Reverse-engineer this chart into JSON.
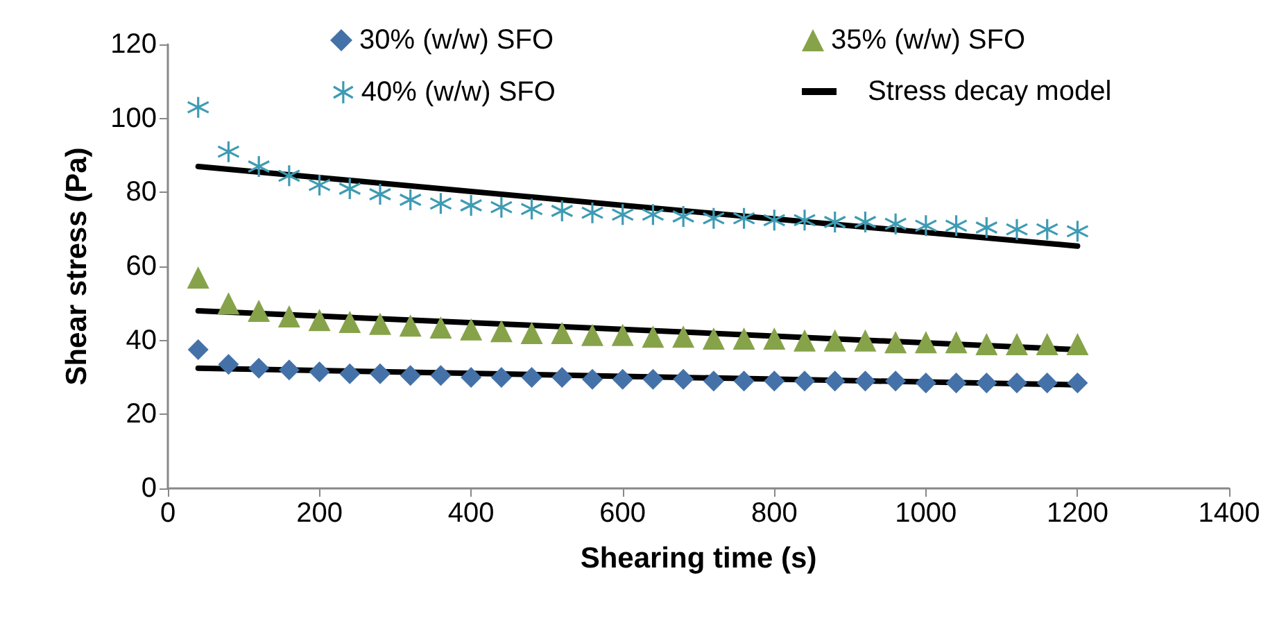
{
  "chart_data": {
    "type": "scatter",
    "xlabel": "Shearing time (s)",
    "ylabel": "Shear stress (Pa)",
    "x": [
      40,
      80,
      120,
      160,
      200,
      240,
      280,
      320,
      360,
      400,
      440,
      480,
      520,
      560,
      600,
      640,
      680,
      720,
      760,
      800,
      840,
      880,
      920,
      960,
      1000,
      1040,
      1080,
      1120,
      1160,
      1200
    ],
    "series": [
      {
        "name": "30% (w/w) SFO",
        "color": "#4472a8",
        "marker": "diamond",
        "values": [
          37.5,
          33.5,
          32.5,
          32,
          31.5,
          31,
          31,
          30.5,
          30.5,
          30,
          30,
          30,
          30,
          29.5,
          29.5,
          29.5,
          29.5,
          29,
          29,
          29,
          29,
          29,
          29,
          29,
          28.5,
          28.5,
          28.5,
          28.5,
          28.5,
          28.5
        ]
      },
      {
        "name": "35% (w/w) SFO",
        "color": "#86a34a",
        "marker": "triangle",
        "values": [
          57,
          50,
          48,
          46.5,
          45.5,
          45,
          44.5,
          44,
          43.5,
          43,
          42.5,
          42,
          42,
          41.5,
          41.5,
          41,
          41,
          40.5,
          40.5,
          40.5,
          40,
          40,
          40,
          39.5,
          39.5,
          39.5,
          39,
          39,
          39,
          39
        ]
      },
      {
        "name": "40% (w/w) SFO",
        "color": "#3e9bb3",
        "marker": "cross",
        "values": [
          103,
          91,
          87,
          84.5,
          82,
          81,
          79.5,
          78,
          77,
          76.5,
          76,
          75.5,
          75,
          74.5,
          74,
          74,
          73.5,
          73,
          73,
          72.5,
          72.5,
          72,
          72,
          71.5,
          71,
          71,
          70.5,
          70,
          70,
          69.5
        ]
      },
      {
        "name": "Stress decay model",
        "type": "line",
        "color": "#000000",
        "marker": "none",
        "line_style": "solid",
        "x": [
          40,
          600,
          1200
        ],
        "values": [
          32.5,
          30.3,
          28
        ]
      },
      {
        "type": "line",
        "color": "#000000",
        "marker": "none",
        "line_style": "solid",
        "x": [
          40,
          600,
          1200
        ],
        "values": [
          48,
          43,
          37.5
        ]
      },
      {
        "type": "line",
        "color": "#000000",
        "marker": "none",
        "line_style": "solid",
        "x": [
          40,
          600,
          1200
        ],
        "values": [
          87,
          76.5,
          65.5
        ]
      }
    ],
    "xlim": [
      0,
      1400
    ],
    "xticks": [
      0,
      200,
      400,
      600,
      800,
      1000,
      1200,
      1400
    ],
    "ylim": [
      0,
      120
    ],
    "yticks": [
      0,
      20,
      40,
      60,
      80,
      100,
      120
    ],
    "grid": false,
    "legend": "top"
  }
}
